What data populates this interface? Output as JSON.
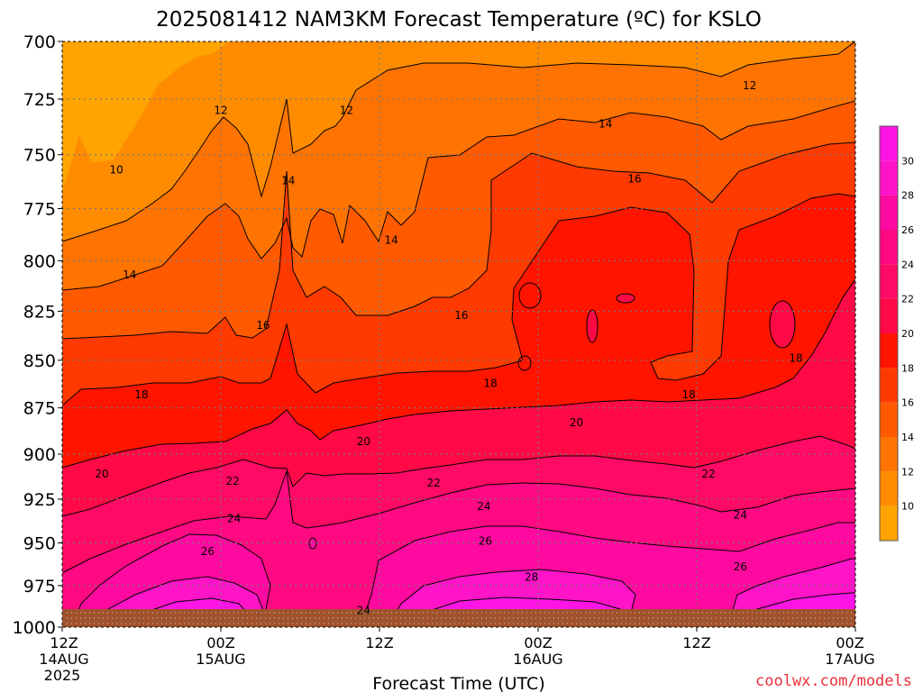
{
  "chart_data": {
    "type": "heatmap",
    "title": "2025081412 NAM3KM Forecast Temperature (ºC) for KSLO",
    "xlabel": "Forecast Time (UTC)",
    "ylabel": "",
    "credit": "coolwx.com/models",
    "y_axis": {
      "scale": "log",
      "reversed": true,
      "range": [
        700,
        1000
      ],
      "ticks": [
        "700",
        "725",
        "750",
        "775",
        "800",
        "825",
        "850",
        "875",
        "900",
        "925",
        "950",
        "975",
        "1000"
      ]
    },
    "x_axis": {
      "range_hours": [
        0,
        60
      ],
      "ticks": [
        {
          "hour": 0,
          "label": "12Z",
          "date": "14AUG",
          "year": "2025"
        },
        {
          "hour": 12,
          "label": "00Z",
          "date": "15AUG",
          "year": ""
        },
        {
          "hour": 24,
          "label": "12Z",
          "date": "",
          "year": ""
        },
        {
          "hour": 36,
          "label": "00Z",
          "date": "16AUG",
          "year": ""
        },
        {
          "hour": 48,
          "label": "12Z",
          "date": "",
          "year": ""
        },
        {
          "hour": 60,
          "label": "00Z",
          "date": "17AUG",
          "year": ""
        }
      ]
    },
    "grid": true,
    "colorbar": {
      "position": "right",
      "labels": [
        "10",
        "12",
        "14",
        "16",
        "18",
        "20",
        "22",
        "24",
        "26",
        "28",
        "30"
      ],
      "colors": [
        "#ffa400",
        "#ff8c00",
        "#ff7300",
        "#ff5a00",
        "#ff3a00",
        "#ff1400",
        "#ff0a46",
        "#ff0a64",
        "#ff0a82",
        "#ff0aa0",
        "#ff14c8",
        "#ff14e6"
      ]
    },
    "ground_color": "#a0522d",
    "contour_labels": [
      {
        "text": "10",
        "hour": 4.1,
        "p": 757
      },
      {
        "text": "12",
        "hour": 12.0,
        "p": 730
      },
      {
        "text": "12",
        "hour": 21.5,
        "p": 730
      },
      {
        "text": "12",
        "hour": 52.0,
        "p": 719
      },
      {
        "text": "14",
        "hour": 5.1,
        "p": 807
      },
      {
        "text": "14",
        "hour": 17.1,
        "p": 762
      },
      {
        "text": "14",
        "hour": 24.9,
        "p": 790
      },
      {
        "text": "14",
        "hour": 41.1,
        "p": 736
      },
      {
        "text": "16",
        "hour": 15.2,
        "p": 832
      },
      {
        "text": "16",
        "hour": 30.2,
        "p": 827
      },
      {
        "text": "16",
        "hour": 43.3,
        "p": 761
      },
      {
        "text": "18",
        "hour": 6.0,
        "p": 868
      },
      {
        "text": "18",
        "hour": 32.4,
        "p": 862
      },
      {
        "text": "18",
        "hour": 47.4,
        "p": 868
      },
      {
        "text": "18",
        "hour": 55.5,
        "p": 849
      },
      {
        "text": "20",
        "hour": 3.0,
        "p": 911
      },
      {
        "text": "20",
        "hour": 22.8,
        "p": 893
      },
      {
        "text": "20",
        "hour": 38.9,
        "p": 883
      },
      {
        "text": "22",
        "hour": 12.9,
        "p": 915
      },
      {
        "text": "22",
        "hour": 28.1,
        "p": 916
      },
      {
        "text": "22",
        "hour": 48.9,
        "p": 911
      },
      {
        "text": "24",
        "hour": 13.0,
        "p": 936
      },
      {
        "text": "24",
        "hour": 31.9,
        "p": 929
      },
      {
        "text": "24",
        "hour": 51.3,
        "p": 934
      },
      {
        "text": "24",
        "hour": 22.8,
        "p": 990
      },
      {
        "text": "26",
        "hour": 11.0,
        "p": 955
      },
      {
        "text": "26",
        "hour": 32.0,
        "p": 949
      },
      {
        "text": "26",
        "hour": 51.3,
        "p": 964
      },
      {
        "text": "28",
        "hour": 35.5,
        "p": 970
      }
    ]
  }
}
